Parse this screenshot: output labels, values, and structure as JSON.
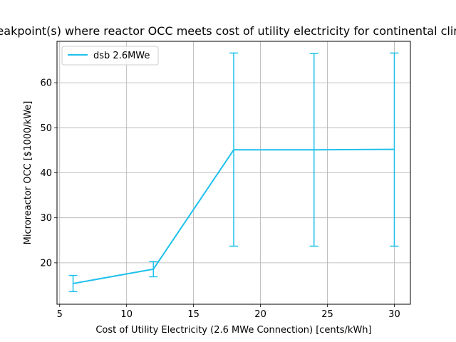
{
  "chart_data": {
    "type": "line",
    "title": "Breakpoint(s) where reactor OCC meets cost of utility electricity for continental climate",
    "xlabel": "Cost of Utility Electricity (2.6 MWe Connection) [cents/kWh]",
    "ylabel": "Microreactor OCC [$1000/kWe]",
    "xlim": [
      4.8,
      31.2
    ],
    "ylim": [
      10.8,
      69.2
    ],
    "xticks": [
      5,
      10,
      15,
      20,
      25,
      30
    ],
    "yticks": [
      20,
      30,
      40,
      50,
      60
    ],
    "grid": true,
    "legend": {
      "placement": "top-left"
    },
    "series": [
      {
        "name": "dsb 2.6MWe",
        "color": "#1ec0ec",
        "x": [
          6,
          12,
          18,
          24,
          30
        ],
        "y": [
          15.4,
          18.6,
          45.1,
          45.1,
          45.2
        ],
        "err_low": [
          13.6,
          16.9,
          23.7,
          23.7,
          23.7
        ],
        "err_high": [
          17.2,
          20.3,
          66.6,
          66.5,
          66.6
        ]
      }
    ]
  }
}
